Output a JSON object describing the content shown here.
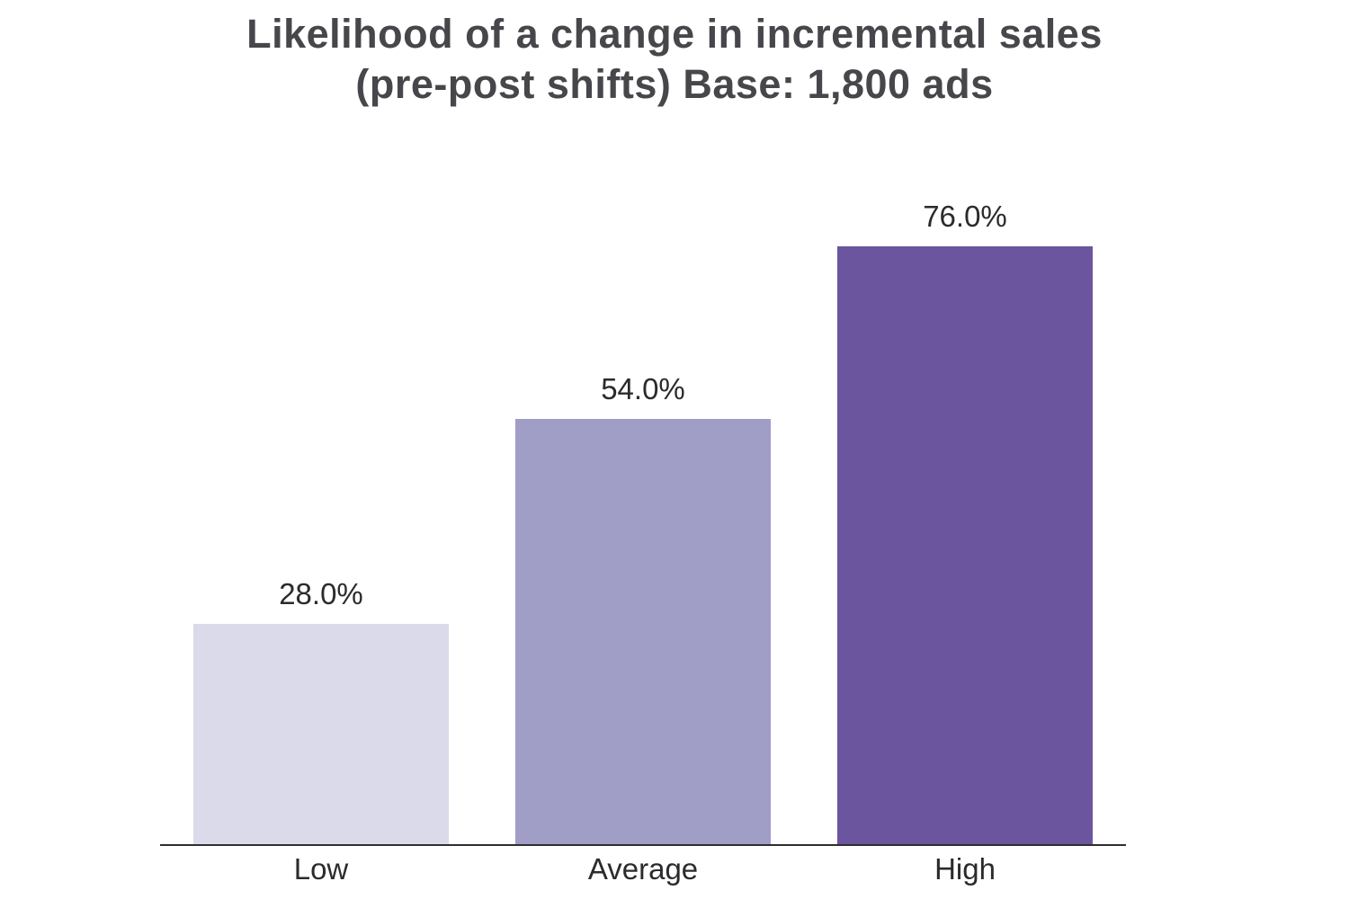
{
  "chart_data": {
    "type": "bar",
    "title": "Likelihood of a change in incremental sales (pre-post shifts) Base: 1,800 ads",
    "title_lines": {
      "line1": "Likelihood of a change in incremental sales",
      "line2": "(pre-post shifts) Base: 1,800 ads"
    },
    "categories": [
      "Low",
      "Average",
      "High"
    ],
    "values": [
      28.0,
      54.0,
      76.0
    ],
    "value_labels": [
      "28.0%",
      "54.0%",
      "76.0%"
    ],
    "bar_colors": [
      "#dbdaea",
      "#a09dc7",
      "#6b559f"
    ],
    "xlabel": "",
    "ylabel": "",
    "ylim": [
      0,
      80
    ],
    "grid": false,
    "legend": false,
    "axis_color": "#2e2e32"
  }
}
